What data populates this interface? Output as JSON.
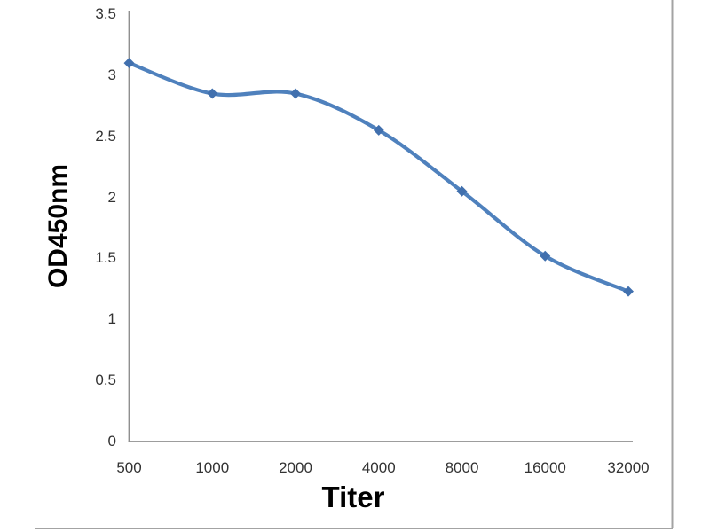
{
  "chart_data": {
    "type": "line",
    "title": "",
    "categories": [
      "500",
      "1000",
      "2000",
      "4000",
      "8000",
      "16000",
      "32000"
    ],
    "series": [
      {
        "name": "OD450nm",
        "values": [
          3.1,
          2.85,
          2.85,
          2.55,
          2.05,
          1.52,
          1.23
        ]
      }
    ],
    "xlabel": "Titer",
    "ylabel": "OD450nm",
    "ylim": [
      0,
      3.5
    ],
    "ytick_labels": [
      "0",
      "0.5",
      "1",
      "1.5",
      "2",
      "2.5",
      "3",
      "3.5"
    ],
    "grid": false,
    "legend": false,
    "smooth": true,
    "marker": "diamond",
    "layout_hints": {
      "y_axis_line": true,
      "x_axis_line": true,
      "frame_right": true,
      "frame_bottom": true
    },
    "colors": {
      "line": "#4F81BD",
      "marker": "#4170AE",
      "axis": "#8F8F8F",
      "frame": "#A3A3A3",
      "tick_text": "#333333",
      "label_text": "#000000"
    }
  }
}
